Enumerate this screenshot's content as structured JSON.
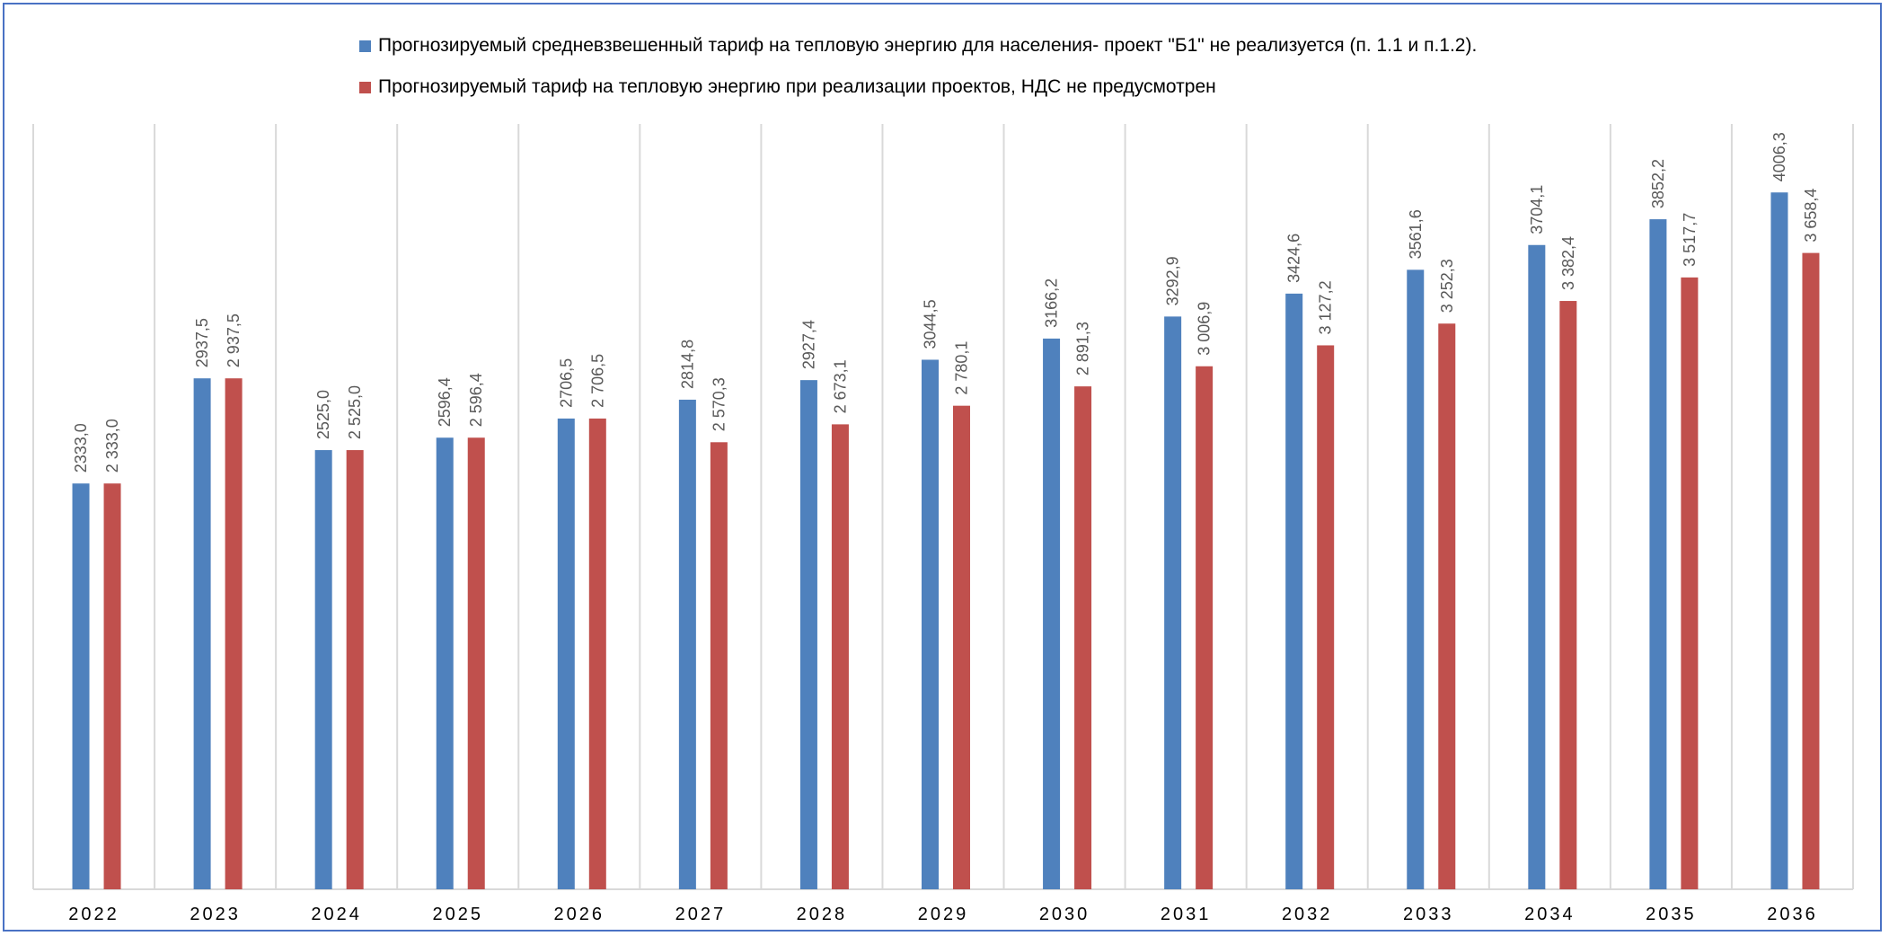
{
  "chart_data": {
    "type": "bar",
    "categories": [
      "2022",
      "2023",
      "2024",
      "2025",
      "2026",
      "2027",
      "2028",
      "2029",
      "2030",
      "2031",
      "2032",
      "2033",
      "2034",
      "2035",
      "2036"
    ],
    "series": [
      {
        "name": "Прогнозируемый средневзвешенный тариф  на тепловую энергию для населения- проект \"Б1\" не реализуется (п. 1.1 и п.1.2).",
        "color": "#4f81bd",
        "values": [
          2333.0,
          2937.5,
          2525.0,
          2596.4,
          2706.5,
          2814.8,
          2927.4,
          3044.5,
          3166.2,
          3292.9,
          3424.6,
          3561.6,
          3704.1,
          3852.2,
          4006.3
        ],
        "labels": [
          "2333,0",
          "2937,5",
          "2525,0",
          "2596,4",
          "2706,5",
          "2814,8",
          "2927,4",
          "3044,5",
          "3166,2",
          "3292,9",
          "3424,6",
          "3561,6",
          "3704,1",
          "3852,2",
          "4006,3"
        ]
      },
      {
        "name": "Прогнозируемый тариф на тепловую энергию при реализации проектов, НДС не предусмотрен",
        "color": "#c0504d",
        "values": [
          2333.0,
          2937.5,
          2525.0,
          2596.4,
          2706.5,
          2570.3,
          2673.1,
          2780.1,
          2891.3,
          3006.9,
          3127.2,
          3252.3,
          3382.4,
          3517.7,
          3658.4
        ],
        "labels": [
          "2 333,0",
          "2 937,5",
          "2 525,0",
          "2 596,4",
          "2 706,5",
          "2 570,3",
          "2 673,1",
          "2 780,1",
          "2 891,3",
          "3 006,9",
          "3 127,2",
          "3 252,3",
          "3 382,4",
          "3 517,7",
          "3 658,4"
        ]
      }
    ],
    "title": "",
    "xlabel": "",
    "ylabel": "",
    "ylim": [
      0,
      4400
    ],
    "grid": "vertical",
    "legend_position": "top"
  }
}
